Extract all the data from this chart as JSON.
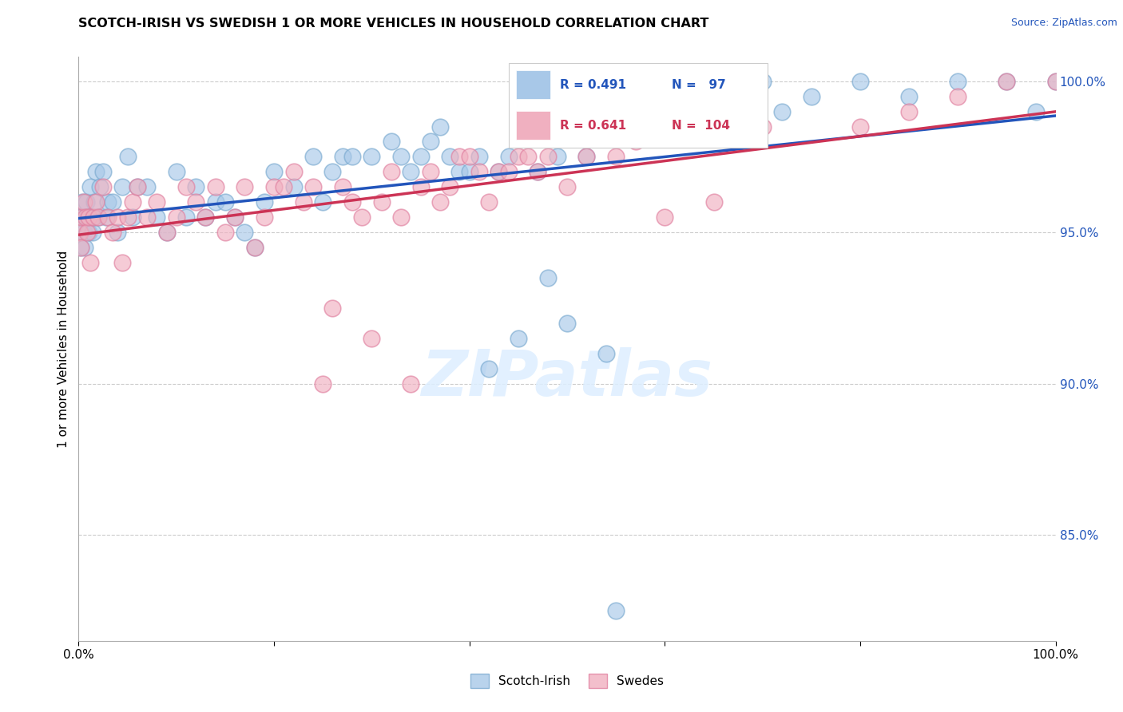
{
  "title": "SCOTCH-IRISH VS SWEDISH 1 OR MORE VEHICLES IN HOUSEHOLD CORRELATION CHART",
  "source": "Source: ZipAtlas.com",
  "ylabel": "1 or more Vehicles in Household",
  "right_yticks": [
    85.0,
    90.0,
    95.0,
    100.0
  ],
  "scotch_irish_color": "#a8c8e8",
  "scotch_irish_edge_color": "#7aaad0",
  "swedes_color": "#f0b0c0",
  "swedes_edge_color": "#e080a0",
  "scotch_irish_line_color": "#2255bb",
  "swedes_line_color": "#cc3355",
  "scotch_irish_R": 0.491,
  "scotch_irish_N": 97,
  "swedes_R": 0.641,
  "swedes_N": 104,
  "xlim": [
    0,
    100
  ],
  "ylim": [
    81.5,
    100.8
  ],
  "scotch_irish_x": [
    0.1,
    0.2,
    0.3,
    0.4,
    0.5,
    0.6,
    0.7,
    0.8,
    0.9,
    1.0,
    1.2,
    1.4,
    1.5,
    1.6,
    1.8,
    2.0,
    2.2,
    2.5,
    2.8,
    3.0,
    3.5,
    4.0,
    4.5,
    5.0,
    5.5,
    6.0,
    7.0,
    8.0,
    9.0,
    10.0,
    11.0,
    12.0,
    13.0,
    14.0,
    15.0,
    16.0,
    17.0,
    18.0,
    19.0,
    20.0,
    22.0,
    24.0,
    25.0,
    26.0,
    27.0,
    28.0,
    30.0,
    32.0,
    33.0,
    34.0,
    35.0,
    36.0,
    37.0,
    38.0,
    39.0,
    40.0,
    41.0,
    42.0,
    43.0,
    44.0,
    45.0,
    46.0,
    47.0,
    48.0,
    49.0,
    50.0,
    52.0,
    54.0,
    55.0,
    57.0,
    60.0,
    62.0,
    64.0,
    65.0,
    68.0,
    70.0,
    72.0,
    75.0,
    80.0,
    85.0,
    90.0,
    95.0,
    98.0,
    100.0
  ],
  "scotch_irish_y": [
    95.0,
    94.5,
    95.5,
    96.0,
    95.0,
    94.5,
    95.5,
    96.0,
    95.5,
    95.0,
    96.5,
    95.0,
    95.5,
    96.0,
    97.0,
    95.5,
    96.5,
    97.0,
    95.5,
    96.0,
    96.0,
    95.0,
    96.5,
    97.5,
    95.5,
    96.5,
    96.5,
    95.5,
    95.0,
    97.0,
    95.5,
    96.5,
    95.5,
    96.0,
    96.0,
    95.5,
    95.0,
    94.5,
    96.0,
    97.0,
    96.5,
    97.5,
    96.0,
    97.0,
    97.5,
    97.5,
    97.5,
    98.0,
    97.5,
    97.0,
    97.5,
    98.0,
    98.5,
    97.5,
    97.0,
    97.0,
    97.5,
    90.5,
    97.0,
    97.5,
    91.5,
    98.5,
    97.0,
    93.5,
    97.5,
    92.0,
    97.5,
    91.0,
    82.5,
    99.0,
    98.5,
    99.0,
    100.0,
    98.5,
    99.5,
    100.0,
    99.0,
    99.5,
    100.0,
    99.5,
    100.0,
    100.0,
    99.0,
    100.0
  ],
  "swedes_x": [
    0.1,
    0.2,
    0.3,
    0.5,
    0.7,
    0.9,
    1.0,
    1.2,
    1.5,
    1.8,
    2.0,
    2.5,
    3.0,
    3.5,
    4.0,
    4.5,
    5.0,
    5.5,
    6.0,
    7.0,
    8.0,
    9.0,
    10.0,
    11.0,
    12.0,
    13.0,
    14.0,
    15.0,
    16.0,
    17.0,
    18.0,
    19.0,
    20.0,
    21.0,
    22.0,
    23.0,
    24.0,
    25.0,
    26.0,
    27.0,
    28.0,
    29.0,
    30.0,
    31.0,
    32.0,
    33.0,
    34.0,
    35.0,
    36.0,
    37.0,
    38.0,
    39.0,
    40.0,
    41.0,
    42.0,
    43.0,
    44.0,
    45.0,
    46.0,
    47.0,
    48.0,
    50.0,
    52.0,
    55.0,
    57.0,
    60.0,
    65.0,
    70.0,
    80.0,
    85.0,
    90.0,
    95.0,
    100.0
  ],
  "swedes_y": [
    95.0,
    94.5,
    95.5,
    96.0,
    95.5,
    95.0,
    95.5,
    94.0,
    95.5,
    96.0,
    95.5,
    96.5,
    95.5,
    95.0,
    95.5,
    94.0,
    95.5,
    96.0,
    96.5,
    95.5,
    96.0,
    95.0,
    95.5,
    96.5,
    96.0,
    95.5,
    96.5,
    95.0,
    95.5,
    96.5,
    94.5,
    95.5,
    96.5,
    96.5,
    97.0,
    96.0,
    96.5,
    90.0,
    92.5,
    96.5,
    96.0,
    95.5,
    91.5,
    96.0,
    97.0,
    95.5,
    90.0,
    96.5,
    97.0,
    96.0,
    96.5,
    97.5,
    97.5,
    97.0,
    96.0,
    97.0,
    97.0,
    97.5,
    97.5,
    97.0,
    97.5,
    96.5,
    97.5,
    97.5,
    98.0,
    95.5,
    96.0,
    98.5,
    98.5,
    99.0,
    99.5,
    100.0,
    100.0
  ]
}
